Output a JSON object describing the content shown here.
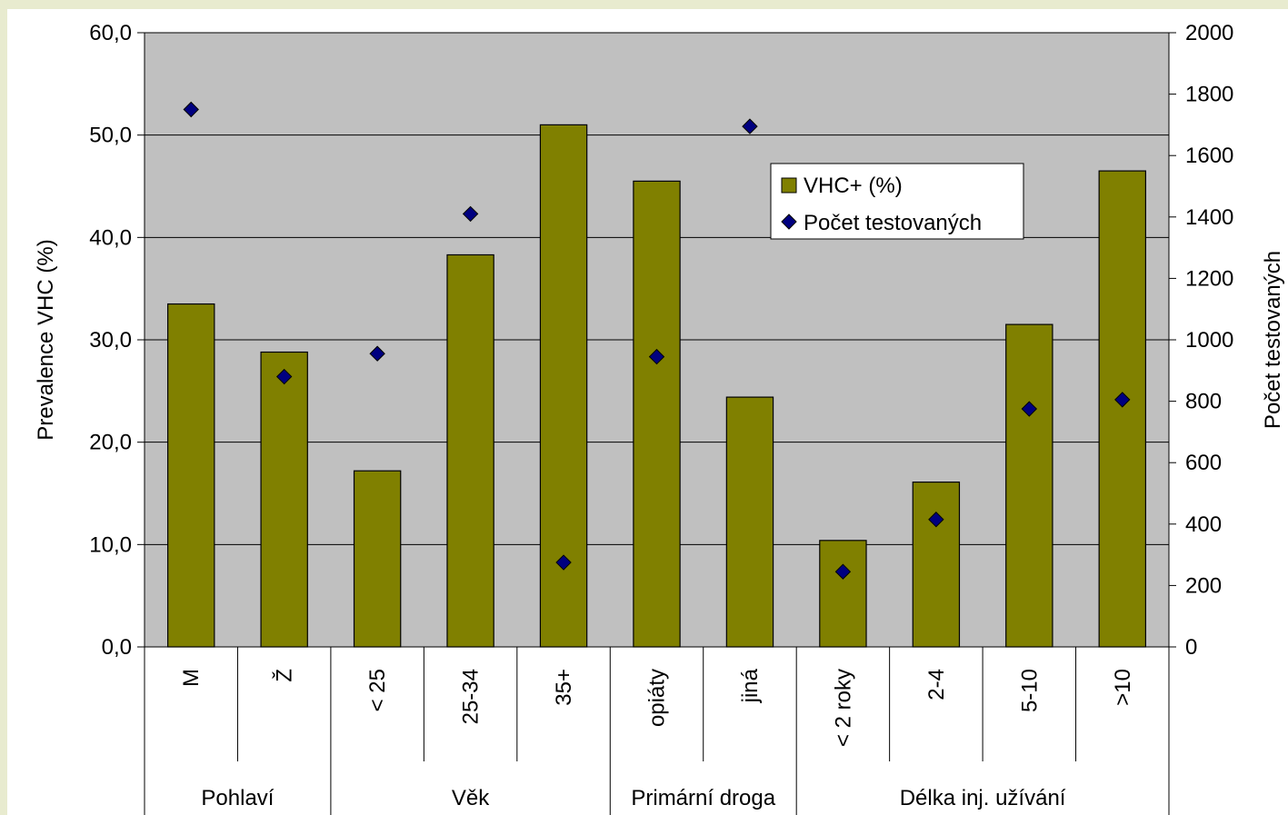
{
  "chart_data": {
    "type": "bar",
    "categories": [
      "M",
      "Ž",
      "< 25",
      "25-34",
      "35+",
      "opiáty",
      "jiná",
      "< 2 roky",
      "2-4",
      "5-10",
      ">10"
    ],
    "groups": [
      {
        "label": "Pohlaví",
        "count": 2
      },
      {
        "label": "Věk",
        "count": 3
      },
      {
        "label": "Primární droga",
        "count": 2
      },
      {
        "label": "Délka inj. užívání",
        "count": 4
      }
    ],
    "series": [
      {
        "name": "VHC+ (%)",
        "type": "bar",
        "axis": "left",
        "color": "#808000",
        "values": [
          33.5,
          28.8,
          17.2,
          38.3,
          51.0,
          45.5,
          24.4,
          10.4,
          16.1,
          31.5,
          46.5
        ]
      },
      {
        "name": "Počet testovaných",
        "type": "scatter",
        "axis": "right",
        "color": "#000080",
        "marker": "diamond",
        "values": [
          1750,
          880,
          955,
          1410,
          275,
          945,
          1695,
          245,
          415,
          775,
          805
        ]
      }
    ],
    "ylabel": "Prevalence VHC (%)",
    "y2label": "Počet testovaných",
    "ylim": [
      0,
      60
    ],
    "y2lim": [
      0,
      2000
    ],
    "yticks": [
      "0,0",
      "10,0",
      "20,0",
      "30,0",
      "40,0",
      "50,0",
      "60,0"
    ],
    "y2ticks": [
      "0",
      "200",
      "400",
      "600",
      "800",
      "1000",
      "1200",
      "1400",
      "1600",
      "1800",
      "2000"
    ],
    "grid": true,
    "plot_background": "#c0c0c0",
    "legend_position": "top-right"
  }
}
